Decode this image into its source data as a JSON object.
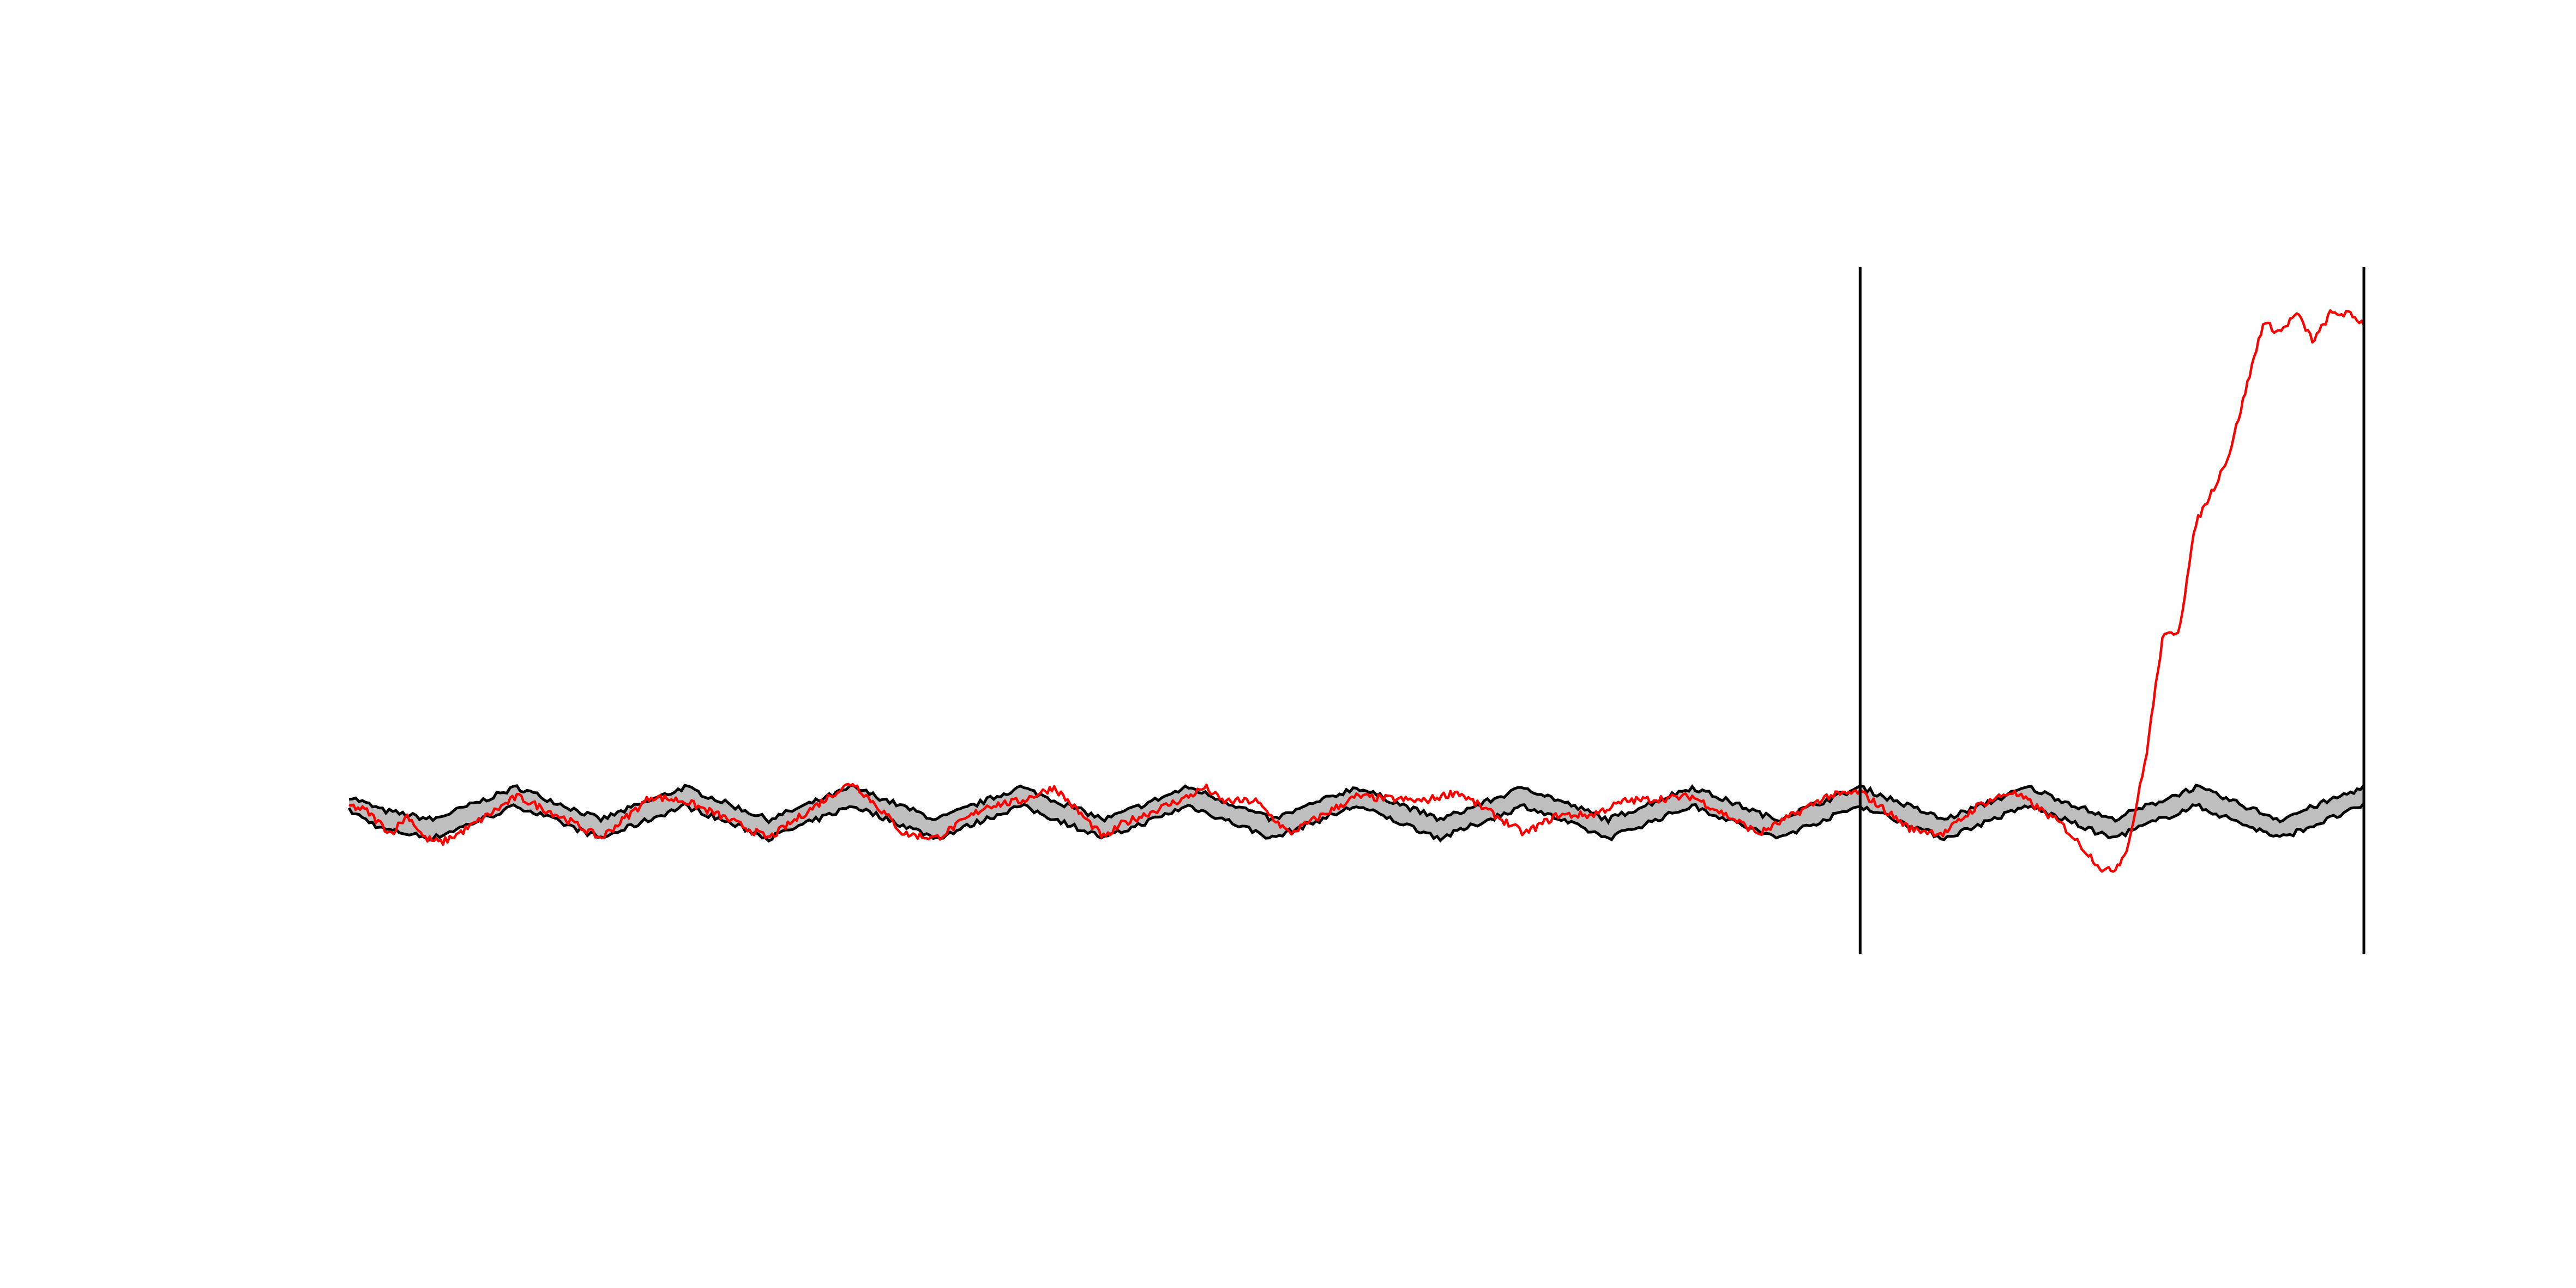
{
  "chart_data": {
    "type": "line",
    "title": "",
    "xlabel": "",
    "ylabel": "",
    "xlim": [
      0,
      1200
    ],
    "ylim": [
      -1.6,
      5.8
    ],
    "grid": false,
    "legend": "none",
    "colors": {
      "band_fill": "#bebebe",
      "band_edge": "#000000",
      "observed": "#ff0000",
      "marker": "#000000"
    },
    "vertical_lines": [
      900,
      1200
    ],
    "band": {
      "x": [
        0,
        20,
        50,
        100,
        150,
        200,
        250,
        300,
        350,
        400,
        450,
        500,
        550,
        600,
        650,
        700,
        750,
        800,
        850,
        900,
        950,
        1000,
        1050,
        1100,
        1150,
        1200
      ],
      "lower": [
        -0.05,
        -0.25,
        -0.35,
        0.0,
        -0.35,
        0.0,
        -0.35,
        0.0,
        -0.35,
        0.0,
        -0.35,
        0.0,
        -0.35,
        0.0,
        -0.35,
        0.0,
        -0.35,
        0.0,
        -0.35,
        0.0,
        -0.35,
        0.0,
        -0.35,
        0.0,
        -0.35,
        0.0
      ],
      "upper": [
        0.1,
        -0.05,
        -0.15,
        0.2,
        -0.15,
        0.2,
        -0.15,
        0.2,
        -0.15,
        0.2,
        -0.15,
        0.2,
        -0.15,
        0.2,
        -0.15,
        0.2,
        -0.15,
        0.2,
        -0.15,
        0.2,
        -0.15,
        0.2,
        -0.15,
        0.2,
        -0.15,
        0.2
      ]
    },
    "series": [
      {
        "x": [
          0,
          10,
          25,
          35,
          45,
          55,
          70,
          100,
          130,
          150,
          160,
          180,
          200,
          220,
          250,
          290,
          300,
          320,
          330,
          350,
          380,
          400,
          420,
          450,
          460,
          500,
          510,
          520,
          540,
          560,
          600,
          640,
          660,
          700,
          720,
          740,
          760,
          800,
          840,
          880,
          900,
          930,
          950,
          970,
          990,
          1000,
          1020,
          1040,
          1045,
          1050,
          1055,
          1060,
          1070,
          1080,
          1090,
          1100,
          1110,
          1120,
          1130,
          1140,
          1150,
          1160,
          1170,
          1180,
          1190,
          1200
        ],
        "y": [
          0.0,
          -0.05,
          -0.3,
          -0.1,
          -0.35,
          -0.4,
          -0.25,
          0.1,
          -0.15,
          -0.35,
          -0.2,
          0.1,
          0.05,
          -0.1,
          -0.35,
          0.15,
          0.25,
          -0.1,
          -0.3,
          -0.35,
          0.0,
          0.05,
          0.2,
          -0.35,
          -0.2,
          0.1,
          0.2,
          0.05,
          0.05,
          -0.3,
          0.1,
          0.05,
          0.15,
          -0.3,
          -0.1,
          -0.1,
          0.05,
          0.1,
          -0.3,
          0.1,
          0.15,
          -0.25,
          -0.3,
          0.0,
          0.15,
          0.05,
          -0.2,
          -0.6,
          -0.7,
          -0.7,
          -0.6,
          -0.4,
          0.5,
          1.8,
          1.9,
          3.05,
          3.4,
          3.8,
          4.5,
          5.2,
          5.1,
          5.3,
          5.0,
          5.3,
          5.3,
          5.2
        ]
      }
    ]
  }
}
